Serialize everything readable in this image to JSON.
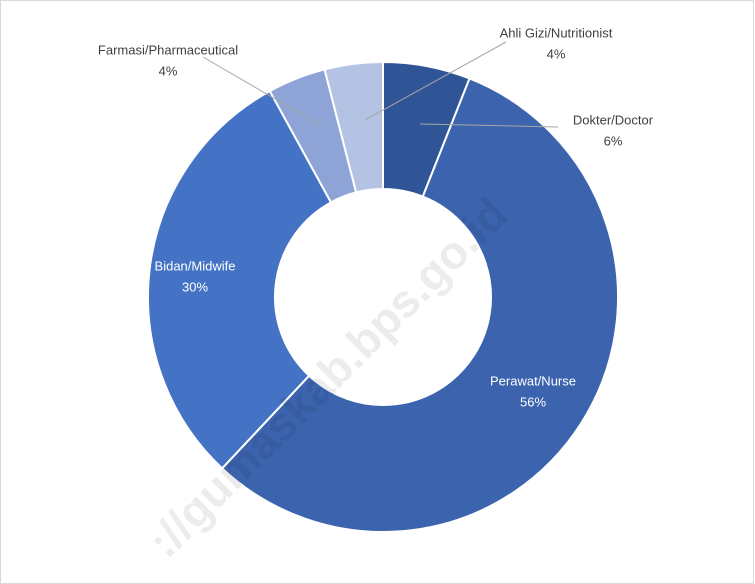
{
  "chart_data": {
    "type": "donut",
    "categories": [
      "Dokter/Doctor",
      "Perawat/Nurse",
      "Bidan/Midwife",
      "Farmasi/Pharmaceutical",
      "Ahli Gizi/Nutritionist"
    ],
    "values": [
      6,
      56,
      30,
      4,
      4
    ],
    "value_labels": [
      "6%",
      "56%",
      "30%",
      "4%",
      "4%"
    ],
    "colors": [
      "#2f5597",
      "#3c64ae",
      "#4472c4",
      "#8fa4d6",
      "#b4c2e4"
    ],
    "watermark": "://gumaskab.bps.go.id"
  }
}
